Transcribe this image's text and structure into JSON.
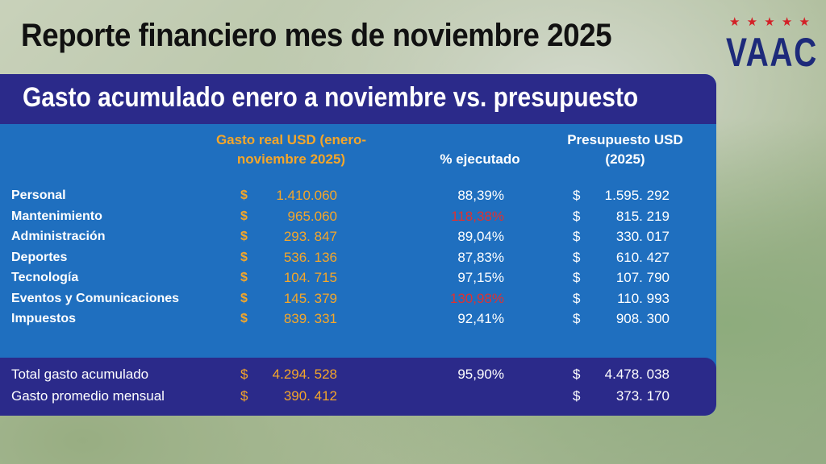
{
  "title": "Reporte financiero mes de noviembre 2025",
  "logo": {
    "stars": "★ ★ ★ ★ ★",
    "text": "VAAC"
  },
  "subtitle": "Gasto acumulado enero a noviembre vs. presupuesto",
  "columns": {
    "real": "Gasto real USD (enero-noviembre 2025)",
    "pct": "% ejecutado",
    "budget": "Presupuesto USD (2025)"
  },
  "currency": "$",
  "rows": [
    {
      "label": "Personal",
      "real": "1.410.060",
      "pct": "88,39%",
      "budget": "1.595. 292",
      "over": false
    },
    {
      "label": "Mantenimiento",
      "real": "965.060",
      "pct": "118,38%",
      "budget": "815.  219",
      "over": true
    },
    {
      "label": "Administración",
      "real": "293. 847",
      "pct": "89,04%",
      "budget": "330.  017",
      "over": false
    },
    {
      "label": "Deportes",
      "real": "536.  136",
      "pct": "87,83%",
      "budget": "610. 427",
      "over": false
    },
    {
      "label": "Tecnología",
      "real": "104.  715",
      "pct": "97,15%",
      "budget": "107. 790",
      "over": false
    },
    {
      "label": "Eventos y Comunicaciones",
      "real": "145. 379",
      "pct": "130,98%",
      "budget": "110. 993",
      "over": true
    },
    {
      "label": "Impuestos",
      "real": "839.  331",
      "pct": "92,41%",
      "budget": "908. 300",
      "over": false
    }
  ],
  "totals": [
    {
      "label": "Total gasto acumulado",
      "real": "4.294. 528",
      "pct": "95,90%",
      "budget": "4.478. 038"
    },
    {
      "label": "Gasto promedio mensual",
      "real": "390.  412",
      "pct": "",
      "budget": "373.  170"
    }
  ],
  "colors": {
    "panel": "#1f6fbf",
    "header": "#2b2a8a",
    "accent": "#f4a62a",
    "over": "#e0312f",
    "logo": "#1d2a7a",
    "stars": "#d32027"
  }
}
